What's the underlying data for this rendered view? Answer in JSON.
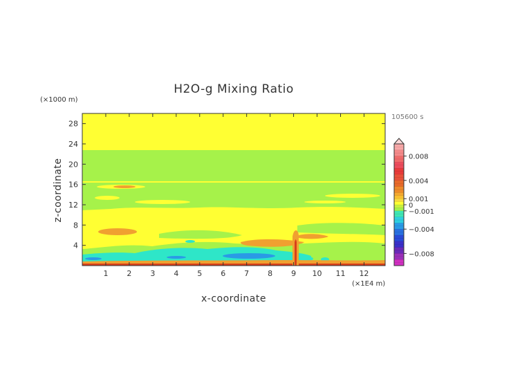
{
  "chart_data": {
    "type": "heatmap",
    "title": "H2O-g Mixing Ratio",
    "xlabel": "x-coordinate",
    "ylabel": "z-coordinate",
    "x_unit": "(×1E4 m)",
    "y_unit": "(×1000 m)",
    "time_label": "105600 s",
    "x_ticks": [
      "1",
      "2",
      "3",
      "4",
      "5",
      "6",
      "7",
      "8",
      "9",
      "10",
      "11",
      "12"
    ],
    "y_ticks": [
      "4",
      "8",
      "12",
      "16",
      "20",
      "24",
      "28"
    ],
    "xlim": [
      0,
      12.9
    ],
    "ylim": [
      0,
      30
    ],
    "colorbar_labels": [
      "0.008",
      "0.004",
      "0.001",
      "0",
      "−0.001",
      "−0.004",
      "−0.008"
    ],
    "colorbar_ticks": [
      0.008,
      0.004,
      0.001,
      0,
      -0.001,
      -0.004,
      -0.008
    ],
    "colorbar_range": [
      -0.01,
      0.01
    ],
    "colors": {
      "yellow": "#ffff33",
      "green": "#a6f24a",
      "orange": "#f0a030",
      "cyan": "#2ee6c8",
      "blue": "#2a9ae6",
      "red": "#d8401a"
    }
  }
}
